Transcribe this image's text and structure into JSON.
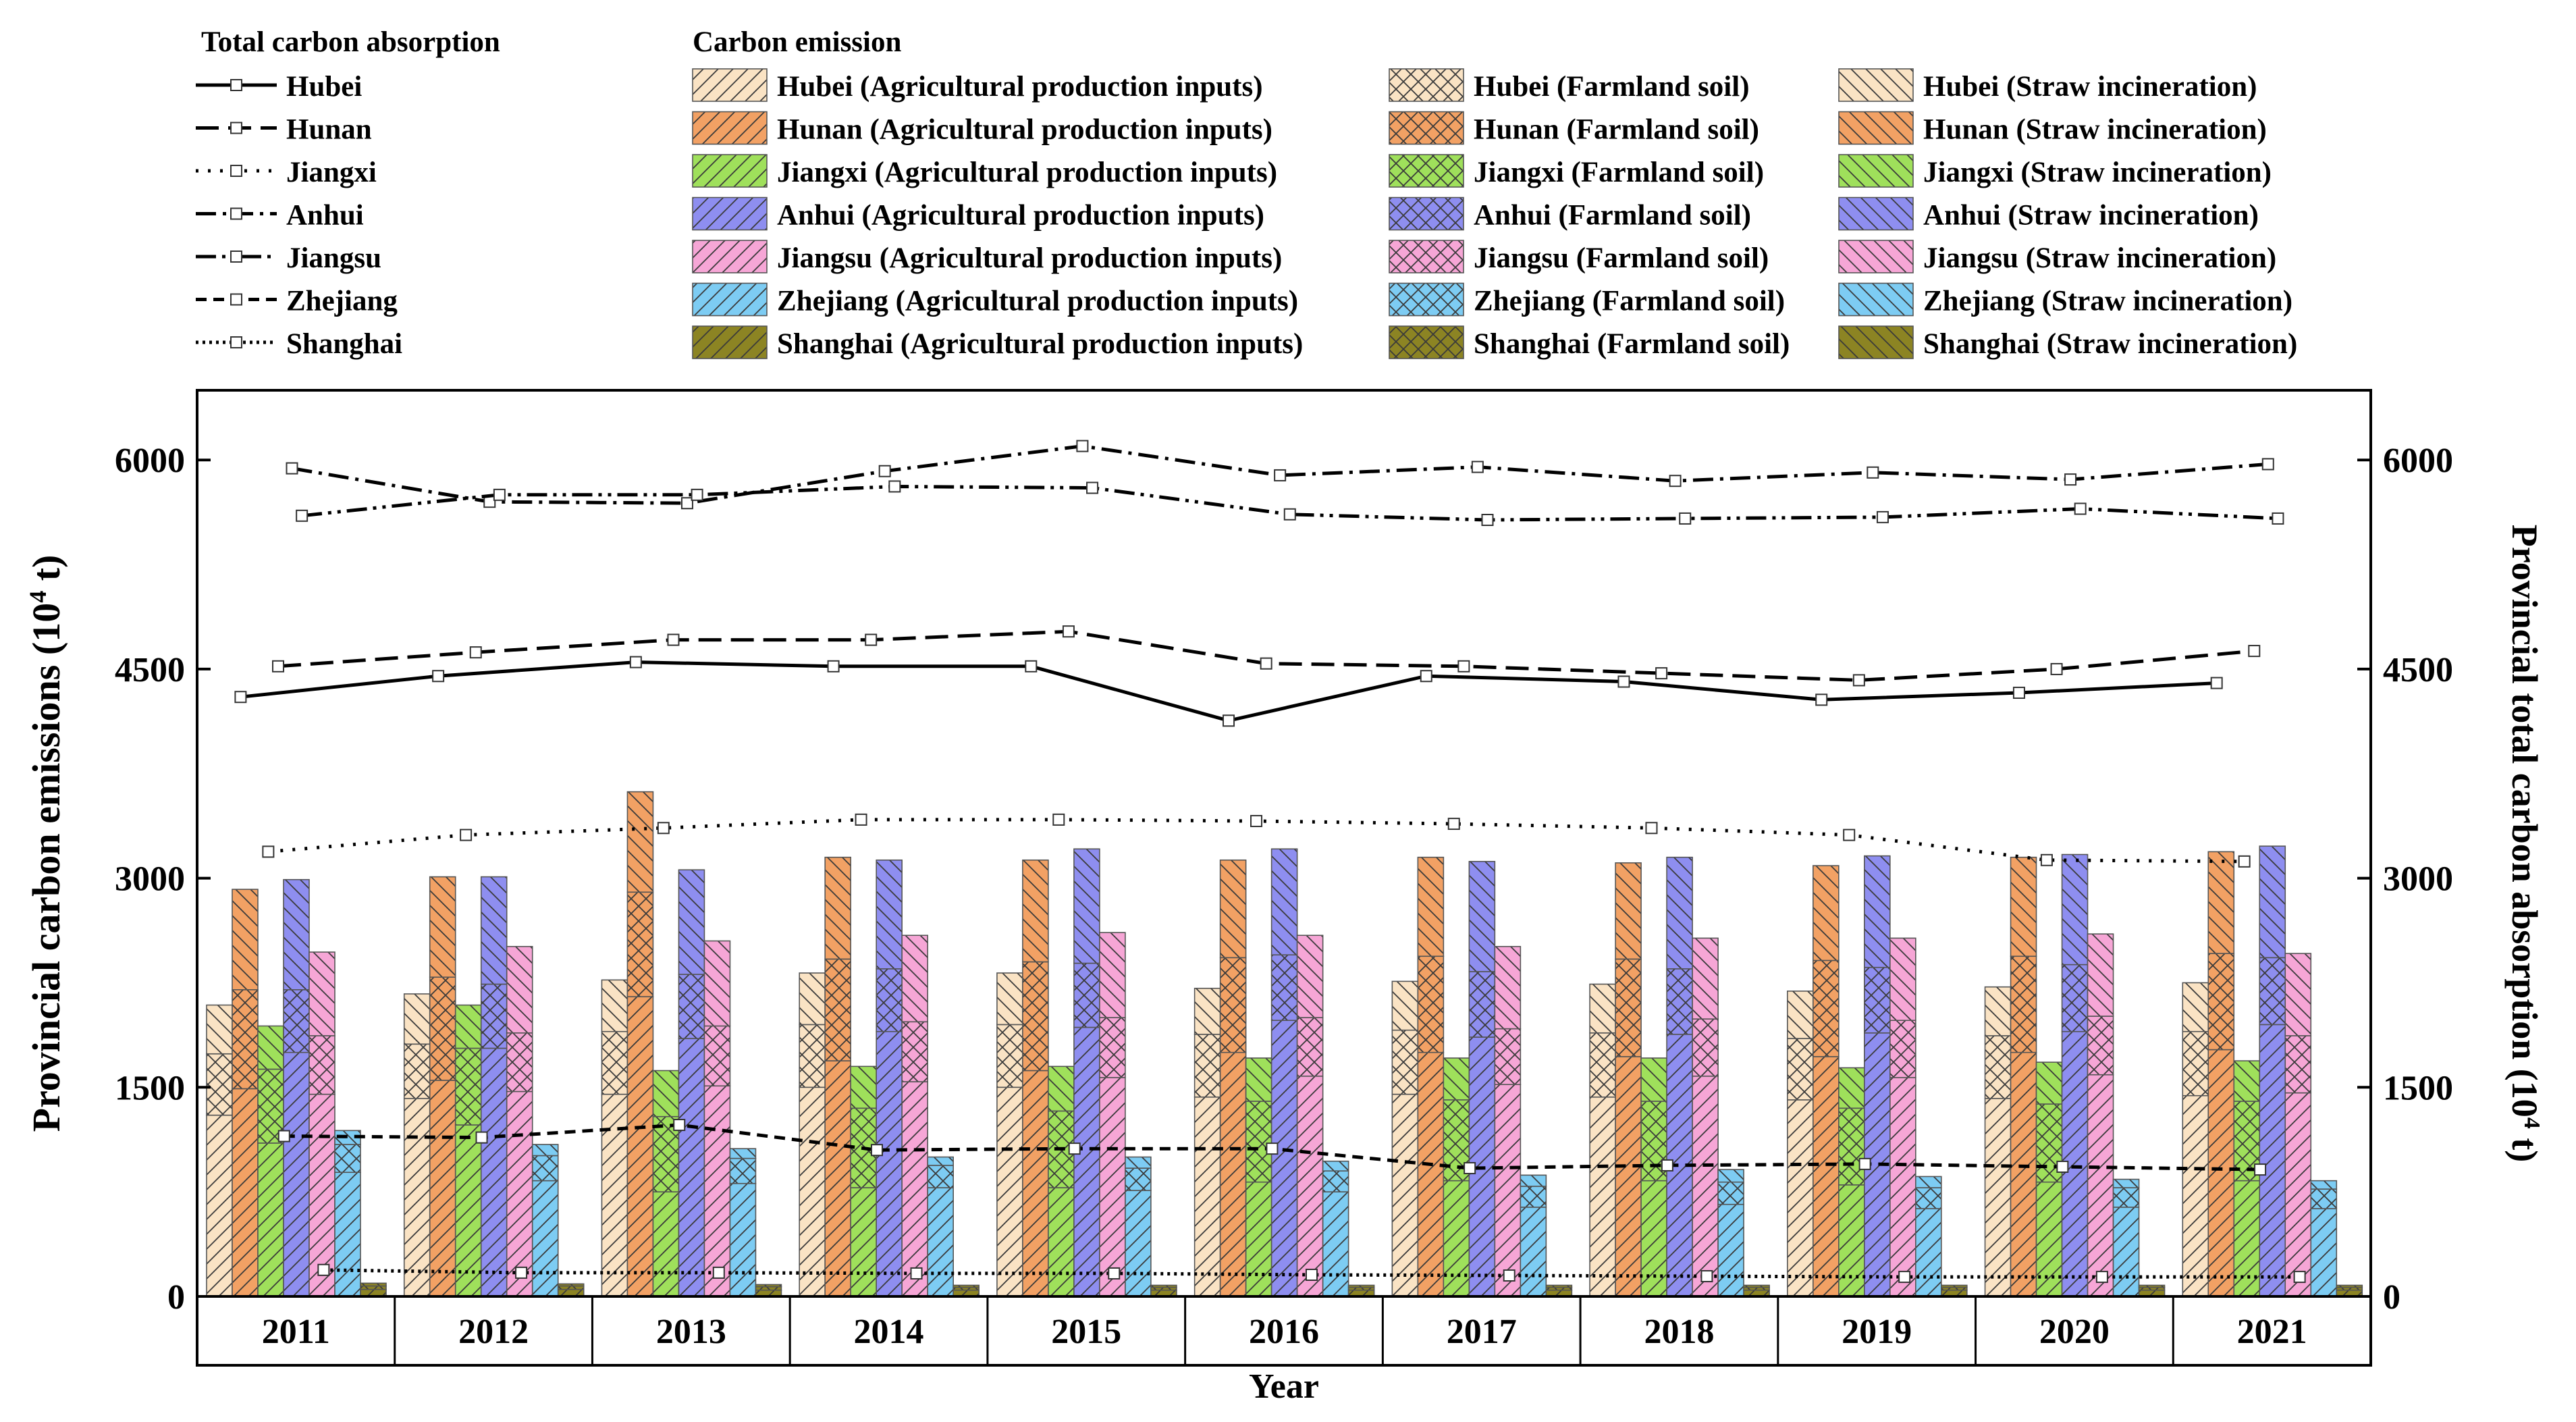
{
  "chart_data": {
    "type": "bar+line",
    "xlabel": "Year",
    "ylabel_left": "Provincial carbon emissions (10",
    "ylabel_right": "Provincial total carbon absorption (10",
    "ylabel_sup": "4",
    "ylabel_unit": " t)",
    "ylim": [
      0,
      6500
    ],
    "yticks": [
      "0",
      "1500",
      "3000",
      "4500",
      "6000"
    ],
    "categories": [
      "2011",
      "2012",
      "2013",
      "2014",
      "2015",
      "2016",
      "2017",
      "2018",
      "2019",
      "2020",
      "2021"
    ],
    "legend": {
      "absorption_title": "Total carbon absorption",
      "emission_title": "Carbon emission",
      "source_labels": [
        "Agricultural production inputs",
        "Farmland soil",
        "Straw incineration"
      ]
    },
    "provinces": [
      {
        "name": "Hubei",
        "color": "#FAE3C4",
        "dash": "solid",
        "absorption": [
          4300,
          4450,
          4550,
          4520,
          4520,
          4130,
          4450,
          4410,
          4280,
          4330,
          4400
        ],
        "emissions": [
          [
            1300,
            440,
            350
          ],
          [
            1420,
            390,
            360
          ],
          [
            1450,
            450,
            370
          ],
          [
            1500,
            450,
            370
          ],
          [
            1500,
            450,
            370
          ],
          [
            1430,
            450,
            330
          ],
          [
            1450,
            460,
            350
          ],
          [
            1430,
            460,
            350
          ],
          [
            1410,
            440,
            340
          ],
          [
            1420,
            450,
            350
          ],
          [
            1440,
            460,
            350
          ]
        ]
      },
      {
        "name": "Hunan",
        "color": "#F2A164",
        "dash": "longdash",
        "absorption": [
          4520,
          4620,
          4710,
          4710,
          4770,
          4540,
          4520,
          4470,
          4420,
          4500,
          4630
        ],
        "emissions": [
          [
            1490,
            710,
            720
          ],
          [
            1550,
            740,
            720
          ],
          [
            2150,
            750,
            720
          ],
          [
            1690,
            730,
            730
          ],
          [
            1620,
            780,
            730
          ],
          [
            1750,
            680,
            700
          ],
          [
            1750,
            690,
            710
          ],
          [
            1720,
            700,
            690
          ],
          [
            1720,
            690,
            680
          ],
          [
            1750,
            690,
            710
          ],
          [
            1770,
            690,
            730
          ]
        ]
      },
      {
        "name": "Jiangxi",
        "color": "#9FE05B",
        "dash": "dotted",
        "absorption": [
          3190,
          3310,
          3360,
          3420,
          3420,
          3410,
          3390,
          3360,
          3310,
          3130,
          3120
        ],
        "emissions": [
          [
            1100,
            530,
            310
          ],
          [
            1230,
            550,
            310
          ],
          [
            750,
            540,
            330
          ],
          [
            780,
            570,
            300
          ],
          [
            780,
            550,
            320
          ],
          [
            820,
            580,
            310
          ],
          [
            830,
            580,
            300
          ],
          [
            830,
            570,
            310
          ],
          [
            800,
            550,
            290
          ],
          [
            820,
            560,
            300
          ],
          [
            830,
            570,
            290
          ]
        ]
      },
      {
        "name": "Anhui",
        "color": "#8E8EF0",
        "dash": "dashdot",
        "absorption": [
          5940,
          5700,
          5690,
          5920,
          6100,
          5890,
          5950,
          5850,
          5910,
          5860,
          5970
        ],
        "emissions": [
          [
            1750,
            450,
            790
          ],
          [
            1780,
            460,
            770
          ],
          [
            1850,
            460,
            750
          ],
          [
            1900,
            450,
            780
          ],
          [
            1930,
            460,
            820
          ],
          [
            1980,
            470,
            760
          ],
          [
            1860,
            470,
            790
          ],
          [
            1880,
            470,
            800
          ],
          [
            1890,
            470,
            800
          ],
          [
            1900,
            480,
            790
          ],
          [
            1950,
            480,
            800
          ]
        ]
      },
      {
        "name": "Jiangsu",
        "color": "#F6A6D6",
        "dash": "dashdotdot",
        "absorption": [
          5600,
          5750,
          5750,
          5810,
          5800,
          5610,
          5570,
          5580,
          5590,
          5650,
          5580
        ],
        "emissions": [
          [
            1450,
            420,
            600
          ],
          [
            1470,
            420,
            620
          ],
          [
            1510,
            430,
            610
          ],
          [
            1540,
            430,
            620
          ],
          [
            1570,
            430,
            610
          ],
          [
            1580,
            420,
            590
          ],
          [
            1520,
            400,
            590
          ],
          [
            1580,
            410,
            580
          ],
          [
            1570,
            410,
            590
          ],
          [
            1590,
            420,
            590
          ],
          [
            1460,
            410,
            590
          ]
        ]
      },
      {
        "name": "Zhejiang",
        "color": "#7DCCF3",
        "dash": "shortdash",
        "absorption": [
          1150,
          1140,
          1230,
          1050,
          1060,
          1060,
          920,
          940,
          950,
          930,
          910
        ],
        "emissions": [
          [
            890,
            200,
            100
          ],
          [
            830,
            180,
            80
          ],
          [
            810,
            180,
            70
          ],
          [
            780,
            160,
            60
          ],
          [
            760,
            160,
            80
          ],
          [
            750,
            150,
            70
          ],
          [
            640,
            150,
            80
          ],
          [
            660,
            160,
            90
          ],
          [
            630,
            150,
            80
          ],
          [
            640,
            140,
            60
          ],
          [
            630,
            140,
            60
          ]
        ]
      },
      {
        "name": "Shanghai",
        "color": "#8C8423",
        "dash": "fineDot",
        "absorption": [
          190,
          170,
          170,
          165,
          165,
          155,
          150,
          145,
          140,
          140,
          140
        ],
        "emissions": [
          [
            50,
            25,
            20
          ],
          [
            50,
            25,
            15
          ],
          [
            45,
            25,
            15
          ],
          [
            45,
            20,
            15
          ],
          [
            45,
            20,
            15
          ],
          [
            45,
            20,
            15
          ],
          [
            45,
            20,
            15
          ],
          [
            45,
            20,
            15
          ],
          [
            45,
            20,
            15
          ],
          [
            45,
            20,
            15
          ],
          [
            45,
            20,
            15
          ]
        ]
      }
    ]
  }
}
